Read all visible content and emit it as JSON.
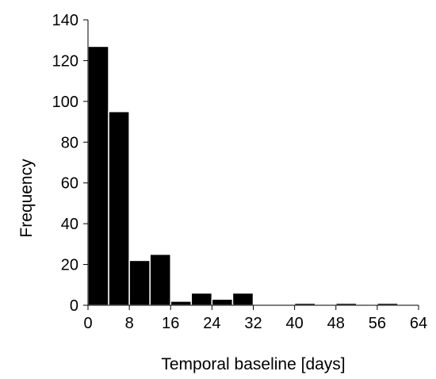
{
  "chart_data": {
    "type": "bar",
    "title": "",
    "xlabel": "Temporal baseline [days]",
    "ylabel": "Frequency",
    "bin_width": 4,
    "bins": [
      {
        "start": 0,
        "end": 4,
        "value": 127
      },
      {
        "start": 4,
        "end": 8,
        "value": 95
      },
      {
        "start": 8,
        "end": 12,
        "value": 22
      },
      {
        "start": 12,
        "end": 16,
        "value": 25
      },
      {
        "start": 16,
        "end": 20,
        "value": 2
      },
      {
        "start": 20,
        "end": 24,
        "value": 6
      },
      {
        "start": 24,
        "end": 28,
        "value": 3
      },
      {
        "start": 28,
        "end": 32,
        "value": 6
      },
      {
        "start": 32,
        "end": 36,
        "value": 0
      },
      {
        "start": 36,
        "end": 40,
        "value": 0
      },
      {
        "start": 40,
        "end": 44,
        "value": 1
      },
      {
        "start": 44,
        "end": 48,
        "value": 0
      },
      {
        "start": 48,
        "end": 52,
        "value": 1
      },
      {
        "start": 52,
        "end": 56,
        "value": 0
      },
      {
        "start": 56,
        "end": 60,
        "value": 1
      },
      {
        "start": 60,
        "end": 64,
        "value": 0
      }
    ],
    "xlim": [
      0,
      64
    ],
    "ylim": [
      0,
      140
    ],
    "xticks": [
      0,
      8,
      16,
      24,
      32,
      40,
      48,
      56,
      64
    ],
    "xtick_labels": [
      "0",
      "8",
      "16",
      "24",
      "32",
      "40",
      "48",
      "56",
      "64"
    ],
    "yticks": [
      0,
      20,
      40,
      60,
      80,
      100,
      120,
      140
    ],
    "ytick_labels": [
      "0",
      "20",
      "40",
      "60",
      "80",
      "100",
      "120",
      "140"
    ],
    "grid": false,
    "legend": "none",
    "colors": {
      "bar_fill": "#000000",
      "bar_edge": "#ffffff",
      "axis": "#000000"
    }
  }
}
